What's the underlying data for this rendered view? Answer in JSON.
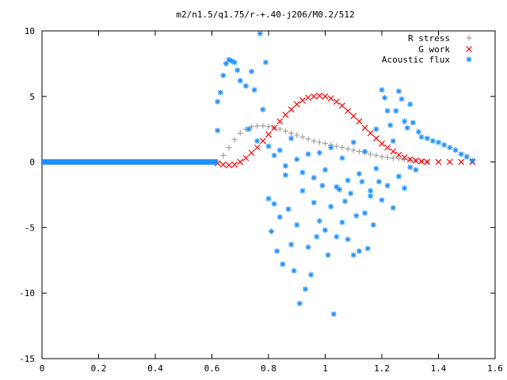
{
  "chart_data": {
    "type": "scatter",
    "title": "m2/n1.5/q1.75/r-+.40-j206/M0.2/512",
    "xlabel": "",
    "ylabel": "",
    "xlim": [
      0,
      1.6
    ],
    "ylim": [
      -15,
      10
    ],
    "x_ticks": [
      "0",
      "0.2",
      "0.4",
      "0.6",
      "0.8",
      "1",
      "1.2",
      "1.4",
      "1.6"
    ],
    "y_ticks": [
      "10",
      "5",
      "0",
      "-5",
      "-10",
      "-15"
    ],
    "grid": false,
    "legend_position": "top-right",
    "series": [
      {
        "name": "R stress",
        "marker": "plus",
        "color": "#a0a0a0",
        "points": [
          [
            0.62,
            0.0
          ],
          [
            0.64,
            0.5
          ],
          [
            0.66,
            1.1
          ],
          [
            0.68,
            1.7
          ],
          [
            0.7,
            2.2
          ],
          [
            0.72,
            2.5
          ],
          [
            0.74,
            2.7
          ],
          [
            0.76,
            2.75
          ],
          [
            0.78,
            2.75
          ],
          [
            0.8,
            2.7
          ],
          [
            0.82,
            2.6
          ],
          [
            0.84,
            2.5
          ],
          [
            0.86,
            2.35
          ],
          [
            0.88,
            2.2
          ],
          [
            0.9,
            2.05
          ],
          [
            0.92,
            1.9
          ],
          [
            0.94,
            1.75
          ],
          [
            0.96,
            1.6
          ],
          [
            0.98,
            1.5
          ],
          [
            1.0,
            1.4
          ],
          [
            1.02,
            1.3
          ],
          [
            1.04,
            1.2
          ],
          [
            1.06,
            1.1
          ],
          [
            1.08,
            1.0
          ],
          [
            1.1,
            0.9
          ],
          [
            1.12,
            0.8
          ],
          [
            1.14,
            0.7
          ],
          [
            1.16,
            0.6
          ],
          [
            1.18,
            0.5
          ],
          [
            1.2,
            0.4
          ],
          [
            1.22,
            0.35
          ],
          [
            1.24,
            0.3
          ],
          [
            1.26,
            0.25
          ],
          [
            1.28,
            0.2
          ],
          [
            1.3,
            0.15
          ],
          [
            1.32,
            0.1
          ],
          [
            1.34,
            0.05
          ],
          [
            1.36,
            0.0
          ]
        ]
      },
      {
        "name": "G work",
        "marker": "cross",
        "color": "#ff0000",
        "points": [
          [
            0.62,
            -0.1
          ],
          [
            0.64,
            -0.2
          ],
          [
            0.66,
            -0.25
          ],
          [
            0.68,
            -0.2
          ],
          [
            0.7,
            0.0
          ],
          [
            0.72,
            0.3
          ],
          [
            0.74,
            0.7
          ],
          [
            0.76,
            1.1
          ],
          [
            0.78,
            1.6
          ],
          [
            0.8,
            2.1
          ],
          [
            0.82,
            2.6
          ],
          [
            0.84,
            3.1
          ],
          [
            0.86,
            3.6
          ],
          [
            0.88,
            4.0
          ],
          [
            0.9,
            4.4
          ],
          [
            0.92,
            4.7
          ],
          [
            0.94,
            4.9
          ],
          [
            0.96,
            5.0
          ],
          [
            0.98,
            5.05
          ],
          [
            1.0,
            5.0
          ],
          [
            1.02,
            4.85
          ],
          [
            1.04,
            4.6
          ],
          [
            1.06,
            4.3
          ],
          [
            1.08,
            3.9
          ],
          [
            1.1,
            3.5
          ],
          [
            1.12,
            3.1
          ],
          [
            1.14,
            2.6
          ],
          [
            1.16,
            2.2
          ],
          [
            1.18,
            1.8
          ],
          [
            1.2,
            1.4
          ],
          [
            1.22,
            1.1
          ],
          [
            1.24,
            0.8
          ],
          [
            1.26,
            0.55
          ],
          [
            1.28,
            0.35
          ],
          [
            1.3,
            0.2
          ],
          [
            1.32,
            0.1
          ],
          [
            1.34,
            0.05
          ],
          [
            1.36,
            0.0
          ],
          [
            1.4,
            0.0
          ],
          [
            1.44,
            0.0
          ],
          [
            1.48,
            0.0
          ],
          [
            1.52,
            0.0
          ]
        ]
      },
      {
        "name": "Acoustic flux",
        "marker": "star",
        "color": "#1e90ff",
        "baseline_x_range": [
          0.0,
          0.62
        ],
        "baseline_y": 0.0,
        "points": [
          [
            0.62,
            2.4
          ],
          [
            0.62,
            4.6
          ],
          [
            0.63,
            5.3
          ],
          [
            0.64,
            6.6
          ],
          [
            0.65,
            7.5
          ],
          [
            0.66,
            7.8
          ],
          [
            0.67,
            7.7
          ],
          [
            0.68,
            7.6
          ],
          [
            0.69,
            7.0
          ],
          [
            0.7,
            6.2
          ],
          [
            0.72,
            5.8
          ],
          [
            0.73,
            2.5
          ],
          [
            0.74,
            6.9
          ],
          [
            0.75,
            5.5
          ],
          [
            0.76,
            1.6
          ],
          [
            0.77,
            9.8
          ],
          [
            0.78,
            4.0
          ],
          [
            0.79,
            7.6
          ],
          [
            0.8,
            -2.8
          ],
          [
            0.81,
            -5.3
          ],
          [
            0.82,
            -3.2
          ],
          [
            0.83,
            -6.8
          ],
          [
            0.84,
            -4.2
          ],
          [
            0.85,
            -7.8
          ],
          [
            0.86,
            -1.0
          ],
          [
            0.87,
            -3.6
          ],
          [
            0.88,
            -6.3
          ],
          [
            0.89,
            -8.3
          ],
          [
            0.9,
            -4.8
          ],
          [
            0.91,
            -10.8
          ],
          [
            0.92,
            -2.2
          ],
          [
            0.93,
            -9.7
          ],
          [
            0.94,
            -6.5
          ],
          [
            0.95,
            -8.6
          ],
          [
            0.96,
            -3.1
          ],
          [
            0.97,
            -5.7
          ],
          [
            0.98,
            -4.5
          ],
          [
            0.99,
            -1.8
          ],
          [
            1.0,
            -5.2
          ],
          [
            1.01,
            -7.1
          ],
          [
            1.02,
            -3.4
          ],
          [
            1.03,
            -11.6
          ],
          [
            1.04,
            -5.7
          ],
          [
            1.05,
            -2.1
          ],
          [
            1.06,
            -4.6
          ],
          [
            1.07,
            -3.0
          ],
          [
            1.08,
            -5.9
          ],
          [
            1.09,
            -2.4
          ],
          [
            1.1,
            -7.1
          ],
          [
            1.11,
            -4.1
          ],
          [
            1.12,
            -6.8
          ],
          [
            1.13,
            -1.5
          ],
          [
            1.14,
            -3.9
          ],
          [
            1.15,
            -6.6
          ],
          [
            1.16,
            -2.2
          ],
          [
            1.17,
            -4.8
          ],
          [
            1.18,
            2.5
          ],
          [
            1.19,
            -1.5
          ],
          [
            1.2,
            5.5
          ],
          [
            1.21,
            4.9
          ],
          [
            1.22,
            3.9
          ],
          [
            1.23,
            2.8
          ],
          [
            1.24,
            1.6
          ],
          [
            1.25,
            3.9
          ],
          [
            1.26,
            5.4
          ],
          [
            1.27,
            4.8
          ],
          [
            1.28,
            3.1
          ],
          [
            1.29,
            2.6
          ],
          [
            1.3,
            4.4
          ],
          [
            1.31,
            3.0
          ],
          [
            1.32,
            -0.6
          ],
          [
            1.33,
            2.3
          ],
          [
            1.34,
            1.9
          ],
          [
            1.36,
            1.8
          ],
          [
            1.38,
            1.6
          ],
          [
            1.4,
            1.5
          ],
          [
            1.42,
            1.3
          ],
          [
            1.44,
            1.1
          ],
          [
            1.46,
            0.9
          ],
          [
            1.48,
            0.6
          ],
          [
            1.5,
            0.4
          ],
          [
            1.52,
            0.1
          ],
          [
            0.8,
            1.2
          ],
          [
            0.82,
            0.5
          ],
          [
            0.84,
            0.9
          ],
          [
            0.86,
            -0.3
          ],
          [
            0.88,
            1.8
          ],
          [
            0.9,
            0.2
          ],
          [
            0.92,
            -0.8
          ],
          [
            0.94,
            0.6
          ],
          [
            0.96,
            -1.2
          ],
          [
            0.98,
            0.7
          ],
          [
            1.0,
            -0.6
          ],
          [
            1.02,
            1.1
          ],
          [
            1.04,
            -1.9
          ],
          [
            1.06,
            0.3
          ],
          [
            1.08,
            -1.4
          ],
          [
            1.1,
            1.5
          ],
          [
            1.12,
            -0.9
          ],
          [
            1.14,
            0.8
          ],
          [
            1.16,
            -2.6
          ],
          [
            1.18,
            -0.5
          ],
          [
            1.2,
            -2.9
          ],
          [
            1.22,
            -1.8
          ],
          [
            1.24,
            -3.5
          ],
          [
            1.26,
            -1.1
          ],
          [
            1.28,
            -2.0
          ],
          [
            1.3,
            -0.4
          ]
        ]
      }
    ]
  }
}
